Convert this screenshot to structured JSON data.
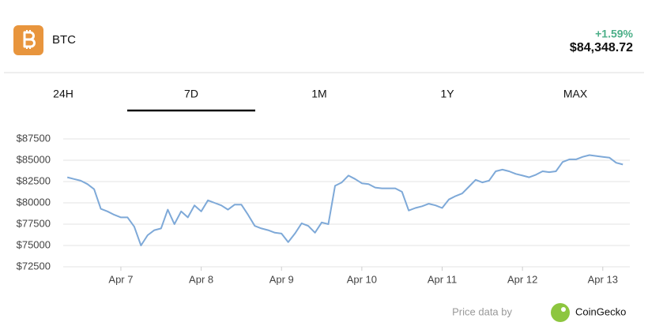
{
  "coin": {
    "symbol": "BTC",
    "change": "+1.59%",
    "price": "$84,348.72"
  },
  "tabs": [
    "24H",
    "7D",
    "1M",
    "1Y",
    "MAX"
  ],
  "active_tab": 1,
  "chart_data": {
    "type": "line",
    "categories": [
      null,
      null,
      null,
      null,
      null,
      null,
      null,
      null,
      "Apr 7",
      null,
      null,
      null,
      null,
      null,
      null,
      null,
      null,
      null,
      null,
      null,
      "Apr 8",
      null,
      null,
      null,
      null,
      null,
      null,
      null,
      null,
      null,
      null,
      null,
      "Apr 9",
      null,
      null,
      null,
      null,
      null,
      null,
      null,
      null,
      null,
      null,
      null,
      "Apr 10",
      null,
      null,
      null,
      null,
      null,
      null,
      null,
      null,
      null,
      null,
      null,
      "Apr 11",
      null,
      null,
      null,
      null,
      null,
      null,
      null,
      null,
      null,
      null,
      null,
      "Apr 12",
      null,
      null,
      null,
      null,
      null,
      null,
      null,
      null,
      null,
      null,
      null,
      "Apr 13",
      null,
      null,
      null
    ],
    "values": [
      83000,
      82800,
      82600,
      82200,
      81600,
      79300,
      79000,
      78600,
      78300,
      78300,
      77200,
      75000,
      76200,
      76800,
      77000,
      79200,
      77500,
      79000,
      78300,
      79700,
      79000,
      80300,
      80000,
      79700,
      79200,
      79800,
      79800,
      78600,
      77300,
      77000,
      76800,
      76500,
      76400,
      75400,
      76400,
      77600,
      77300,
      76500,
      77700,
      77500,
      82000,
      82400,
      83200,
      82800,
      82300,
      82200,
      81800,
      81700,
      81700,
      81700,
      81300,
      79100,
      79400,
      79600,
      79900,
      79700,
      79400,
      80400,
      80800,
      81100,
      81900,
      82700,
      82400,
      82600,
      83700,
      83900,
      83700,
      83400,
      83200,
      83000,
      83300,
      83700,
      83600,
      83700,
      84800,
      85100,
      85100,
      85400,
      85600,
      85500,
      85400,
      85300,
      84700,
      84500
    ],
    "color": "#7ea9d8",
    "ylim": [
      72500,
      87500
    ],
    "yticks": [
      {
        "value": 72500,
        "label": "$72500"
      },
      {
        "value": 75000,
        "label": "$75000"
      },
      {
        "value": 77500,
        "label": "$77500"
      },
      {
        "value": 80000,
        "label": "$80000"
      },
      {
        "value": 82500,
        "label": "$82500"
      },
      {
        "value": 85000,
        "label": "$85000"
      },
      {
        "value": 87500,
        "label": "$87500"
      }
    ],
    "grid": true
  },
  "attribution": {
    "text": "Price data by",
    "source": "CoinGecko"
  }
}
